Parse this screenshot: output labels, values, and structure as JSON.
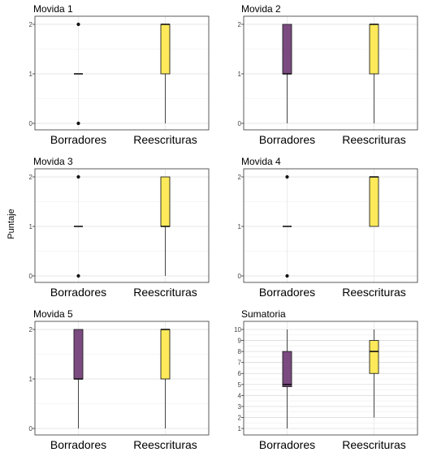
{
  "ylabel": "Puntaje",
  "colors": {
    "borradores": "#7b4a80",
    "reescrituras": "#fde95a"
  },
  "chart_data": [
    {
      "type": "box",
      "title": "Movida 1",
      "categories": [
        "Borradores",
        "Reescrituras"
      ],
      "ylim": [
        0,
        2
      ],
      "yticks": [
        "0",
        "1",
        "2"
      ],
      "boxes": [
        {
          "min": 1,
          "q1": 1,
          "median": 1,
          "q3": 1,
          "max": 1,
          "outliers": [
            0,
            2
          ]
        },
        {
          "min": 0,
          "q1": 1,
          "median": 2,
          "q3": 2,
          "max": 2,
          "outliers": []
        }
      ]
    },
    {
      "type": "box",
      "title": "Movida 2",
      "categories": [
        "Borradores",
        "Reescrituras"
      ],
      "ylim": [
        0,
        2
      ],
      "yticks": [
        "0",
        "1",
        "2"
      ],
      "boxes": [
        {
          "min": 0,
          "q1": 1,
          "median": 1,
          "q3": 2,
          "max": 2,
          "outliers": []
        },
        {
          "min": 0,
          "q1": 1,
          "median": 2,
          "q3": 2,
          "max": 2,
          "outliers": []
        }
      ]
    },
    {
      "type": "box",
      "title": "Movida 3",
      "categories": [
        "Borradores",
        "Reescrituras"
      ],
      "ylim": [
        0,
        2
      ],
      "yticks": [
        "0",
        "1",
        "2"
      ],
      "boxes": [
        {
          "min": 1,
          "q1": 1,
          "median": 1,
          "q3": 1,
          "max": 1,
          "outliers": [
            0,
            2
          ]
        },
        {
          "min": 0,
          "q1": 1,
          "median": 1,
          "q3": 2,
          "max": 2,
          "outliers": []
        }
      ]
    },
    {
      "type": "box",
      "title": "Movida 4",
      "categories": [
        "Borradores",
        "Reescrituras"
      ],
      "ylim": [
        0,
        2
      ],
      "yticks": [
        "0",
        "1",
        "2"
      ],
      "boxes": [
        {
          "min": 1,
          "q1": 1,
          "median": 1,
          "q3": 1,
          "max": 1,
          "outliers": [
            0,
            2
          ]
        },
        {
          "min": 1,
          "q1": 1,
          "median": 2,
          "q3": 2,
          "max": 2,
          "outliers": []
        }
      ]
    },
    {
      "type": "box",
      "title": "Movida 5",
      "categories": [
        "Borradores",
        "Reescrituras"
      ],
      "ylim": [
        0,
        2
      ],
      "yticks": [
        "0",
        "1",
        "2"
      ],
      "boxes": [
        {
          "min": 0,
          "q1": 1,
          "median": 1,
          "q3": 2,
          "max": 2,
          "outliers": []
        },
        {
          "min": 0,
          "q1": 1,
          "median": 2,
          "q3": 2,
          "max": 2,
          "outliers": []
        }
      ]
    },
    {
      "type": "box",
      "title": "Sumatoria",
      "categories": [
        "Borradores",
        "Reescrituras"
      ],
      "ylim": [
        1,
        10
      ],
      "yticks": [
        "1",
        "2",
        "3",
        "4",
        "5",
        "6",
        "7",
        "8",
        "9",
        "10"
      ],
      "boxes": [
        {
          "min": 1,
          "q1": 4.8,
          "median": 5,
          "q3": 8,
          "max": 10,
          "outliers": []
        },
        {
          "min": 2,
          "q1": 6,
          "median": 8,
          "q3": 9,
          "max": 10,
          "outliers": []
        }
      ]
    }
  ]
}
